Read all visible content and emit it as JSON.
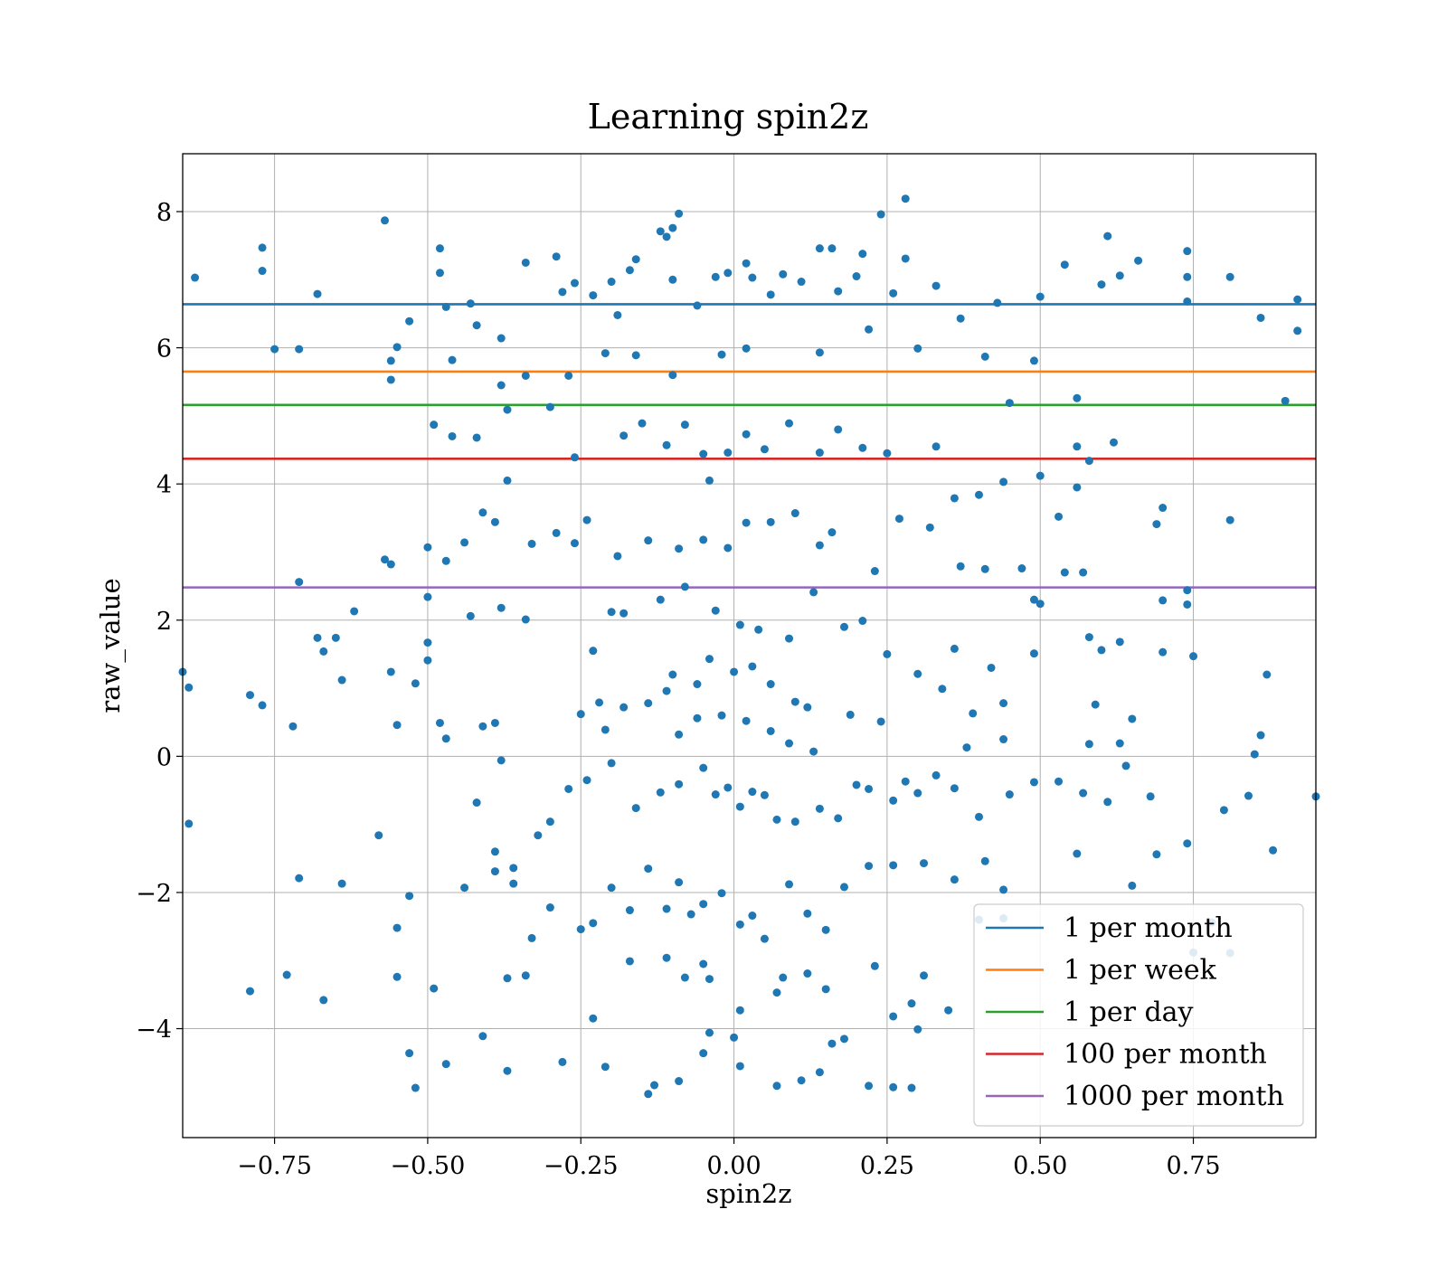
{
  "chart_data": {
    "type": "scatter",
    "title": "Learning spin2z",
    "xlabel": "spin2z",
    "ylabel": "raw_value",
    "xlim": [
      -0.9,
      0.95
    ],
    "ylim": [
      -5.6,
      8.85
    ],
    "grid": true,
    "legend_position": "lower right",
    "x_ticks": [
      -0.75,
      -0.5,
      -0.25,
      0.0,
      0.25,
      0.5,
      0.75
    ],
    "x_tick_labels": [
      "−0.75",
      "−0.50",
      "−0.25",
      "0.00",
      "0.25",
      "0.50",
      "0.75"
    ],
    "y_ticks": [
      -4,
      -2,
      0,
      2,
      4,
      6,
      8
    ],
    "y_tick_labels": [
      "−4",
      "−2",
      "0",
      "2",
      "4",
      "6",
      "8"
    ],
    "scatter_color": "#1f77b4",
    "hlines": [
      {
        "name": "1 per month",
        "y": 6.64,
        "color": "#1f77b4"
      },
      {
        "name": "1 per week",
        "y": 5.65,
        "color": "#ff7f0e"
      },
      {
        "name": "1 per day",
        "y": 5.16,
        "color": "#2ca02c"
      },
      {
        "name": "100 per month",
        "y": 4.37,
        "color": "#d62728"
      },
      {
        "name": "1000 per month",
        "y": 2.48,
        "color": "#9467bd"
      }
    ],
    "points": [
      [
        -0.88,
        7.03
      ],
      [
        -0.77,
        7.47
      ],
      [
        -0.77,
        7.13
      ],
      [
        -0.75,
        5.98
      ],
      [
        -0.68,
        6.79
      ],
      [
        -0.71,
        5.98
      ],
      [
        -0.57,
        7.87
      ],
      [
        -0.48,
        7.46
      ],
      [
        -0.48,
        7.1
      ],
      [
        -0.47,
        6.6
      ],
      [
        -0.43,
        6.65
      ],
      [
        -0.42,
        6.33
      ],
      [
        -0.53,
        6.39
      ],
      [
        -0.55,
        6.01
      ],
      [
        -0.56,
        5.81
      ],
      [
        -0.56,
        5.53
      ],
      [
        -0.46,
        5.82
      ],
      [
        -0.38,
        6.14
      ],
      [
        -0.38,
        5.45
      ],
      [
        -0.37,
        5.09
      ],
      [
        -0.34,
        5.59
      ],
      [
        -0.34,
        7.25
      ],
      [
        -0.29,
        7.34
      ],
      [
        -0.28,
        6.82
      ],
      [
        -0.26,
        6.95
      ],
      [
        -0.23,
        6.77
      ],
      [
        -0.2,
        6.97
      ],
      [
        -0.19,
        6.48
      ],
      [
        -0.17,
        7.14
      ],
      [
        -0.16,
        7.3
      ],
      [
        -0.12,
        7.71
      ],
      [
        -0.11,
        7.63
      ],
      [
        -0.09,
        7.97
      ],
      [
        -0.1,
        7.76
      ],
      [
        -0.1,
        7.0
      ],
      [
        -0.06,
        6.62
      ],
      [
        -0.03,
        7.04
      ],
      [
        -0.01,
        7.1
      ],
      [
        0.02,
        7.24
      ],
      [
        0.03,
        7.03
      ],
      [
        0.06,
        6.78
      ],
      [
        0.08,
        7.08
      ],
      [
        0.11,
        6.97
      ],
      [
        0.14,
        7.46
      ],
      [
        0.16,
        7.46
      ],
      [
        0.17,
        6.83
      ],
      [
        0.2,
        7.05
      ],
      [
        0.21,
        7.38
      ],
      [
        0.24,
        7.96
      ],
      [
        0.28,
        8.19
      ],
      [
        0.28,
        7.31
      ],
      [
        0.26,
        6.8
      ],
      [
        0.33,
        6.91
      ],
      [
        0.37,
        6.43
      ],
      [
        0.43,
        6.66
      ],
      [
        0.5,
        6.75
      ],
      [
        0.54,
        7.22
      ],
      [
        0.61,
        7.64
      ],
      [
        0.6,
        6.93
      ],
      [
        0.63,
        7.06
      ],
      [
        0.66,
        7.28
      ],
      [
        0.74,
        7.42
      ],
      [
        0.74,
        7.04
      ],
      [
        0.74,
        6.68
      ],
      [
        0.81,
        7.04
      ],
      [
        0.86,
        6.44
      ],
      [
        0.92,
        6.71
      ],
      [
        0.92,
        6.25
      ],
      [
        0.9,
        5.22
      ],
      [
        0.56,
        5.26
      ],
      [
        0.45,
        5.19
      ],
      [
        0.49,
        5.81
      ],
      [
        0.41,
        5.87
      ],
      [
        0.3,
        5.99
      ],
      [
        0.22,
        6.27
      ],
      [
        0.14,
        5.93
      ],
      [
        0.02,
        5.99
      ],
      [
        -0.02,
        5.9
      ],
      [
        -0.1,
        5.6
      ],
      [
        -0.16,
        5.89
      ],
      [
        -0.21,
        5.92
      ],
      [
        -0.27,
        5.59
      ],
      [
        -0.3,
        5.13
      ],
      [
        -0.49,
        4.87
      ],
      [
        -0.46,
        4.7
      ],
      [
        -0.42,
        4.68
      ],
      [
        -0.37,
        4.05
      ],
      [
        -0.26,
        4.39
      ],
      [
        -0.18,
        4.71
      ],
      [
        -0.15,
        4.89
      ],
      [
        -0.11,
        4.57
      ],
      [
        -0.08,
        4.87
      ],
      [
        -0.05,
        4.44
      ],
      [
        -0.04,
        4.05
      ],
      [
        -0.01,
        4.46
      ],
      [
        0.02,
        4.73
      ],
      [
        0.05,
        4.51
      ],
      [
        0.09,
        4.89
      ],
      [
        0.14,
        4.46
      ],
      [
        0.17,
        4.8
      ],
      [
        0.21,
        4.53
      ],
      [
        0.25,
        4.45
      ],
      [
        0.33,
        4.55
      ],
      [
        0.36,
        3.79
      ],
      [
        0.4,
        3.84
      ],
      [
        0.44,
        4.03
      ],
      [
        0.5,
        4.12
      ],
      [
        0.56,
        4.55
      ],
      [
        0.58,
        4.34
      ],
      [
        0.62,
        4.61
      ],
      [
        0.7,
        3.65
      ],
      [
        0.69,
        3.41
      ],
      [
        0.81,
        3.47
      ],
      [
        0.56,
        3.95
      ],
      [
        0.53,
        3.52
      ],
      [
        0.54,
        2.7
      ],
      [
        0.57,
        2.7
      ],
      [
        0.47,
        2.76
      ],
      [
        0.41,
        2.75
      ],
      [
        0.37,
        2.79
      ],
      [
        0.32,
        3.36
      ],
      [
        0.27,
        3.49
      ],
      [
        0.23,
        2.72
      ],
      [
        0.16,
        3.29
      ],
      [
        0.14,
        3.1
      ],
      [
        0.1,
        3.57
      ],
      [
        0.06,
        3.44
      ],
      [
        0.02,
        3.43
      ],
      [
        -0.01,
        3.06
      ],
      [
        -0.05,
        3.18
      ],
      [
        -0.09,
        3.05
      ],
      [
        -0.14,
        3.17
      ],
      [
        -0.19,
        2.94
      ],
      [
        -0.24,
        3.47
      ],
      [
        -0.26,
        3.13
      ],
      [
        -0.29,
        3.28
      ],
      [
        -0.33,
        3.12
      ],
      [
        -0.39,
        3.44
      ],
      [
        -0.41,
        3.58
      ],
      [
        -0.44,
        3.14
      ],
      [
        -0.47,
        2.87
      ],
      [
        -0.5,
        3.07
      ],
      [
        -0.56,
        2.82
      ],
      [
        -0.57,
        2.89
      ],
      [
        -0.71,
        2.56
      ],
      [
        -0.5,
        2.34
      ],
      [
        -0.43,
        2.06
      ],
      [
        -0.38,
        2.18
      ],
      [
        -0.34,
        2.01
      ],
      [
        -0.23,
        1.55
      ],
      [
        -0.2,
        2.12
      ],
      [
        -0.18,
        2.1
      ],
      [
        -0.12,
        2.3
      ],
      [
        -0.08,
        2.49
      ],
      [
        -0.03,
        2.14
      ],
      [
        0.01,
        1.93
      ],
      [
        0.04,
        1.86
      ],
      [
        0.09,
        1.73
      ],
      [
        0.13,
        2.41
      ],
      [
        0.18,
        1.9
      ],
      [
        0.21,
        1.99
      ],
      [
        0.25,
        1.5
      ],
      [
        0.3,
        1.21
      ],
      [
        0.36,
        1.58
      ],
      [
        0.42,
        1.3
      ],
      [
        0.49,
        1.51
      ],
      [
        0.49,
        2.3
      ],
      [
        0.5,
        2.24
      ],
      [
        0.58,
        1.75
      ],
      [
        0.6,
        1.56
      ],
      [
        0.63,
        1.68
      ],
      [
        0.7,
        2.29
      ],
      [
        0.7,
        1.53
      ],
      [
        0.75,
        1.47
      ],
      [
        0.74,
        2.44
      ],
      [
        0.74,
        2.23
      ],
      [
        0.87,
        1.2
      ],
      [
        0.85,
        0.03
      ],
      [
        0.86,
        0.31
      ],
      [
        0.95,
        -0.59
      ],
      [
        -0.9,
        1.24
      ],
      [
        -0.89,
        1.01
      ],
      [
        -0.89,
        -0.99
      ],
      [
        -0.79,
        0.9
      ],
      [
        -0.77,
        0.75
      ],
      [
        -0.72,
        0.44
      ],
      [
        -0.68,
        1.74
      ],
      [
        -0.65,
        1.74
      ],
      [
        -0.62,
        2.13
      ],
      [
        -0.64,
        1.12
      ],
      [
        -0.67,
        1.54
      ],
      [
        -0.56,
        1.24
      ],
      [
        -0.52,
        1.07
      ],
      [
        -0.5,
        1.41
      ],
      [
        -0.5,
        1.67
      ],
      [
        -0.55,
        0.46
      ],
      [
        -0.48,
        0.49
      ],
      [
        -0.47,
        0.26
      ],
      [
        -0.41,
        0.44
      ],
      [
        -0.39,
        0.49
      ],
      [
        -0.38,
        -0.06
      ],
      [
        -0.42,
        -0.68
      ],
      [
        -0.39,
        -1.4
      ],
      [
        -0.36,
        -1.64
      ],
      [
        -0.32,
        -1.16
      ],
      [
        -0.3,
        -0.96
      ],
      [
        -0.27,
        -0.48
      ],
      [
        -0.24,
        -0.35
      ],
      [
        -0.2,
        -0.1
      ],
      [
        -0.16,
        -0.76
      ],
      [
        -0.12,
        -0.53
      ],
      [
        -0.09,
        -0.41
      ],
      [
        -0.05,
        -0.17
      ],
      [
        -0.03,
        -0.56
      ],
      [
        -0.01,
        -0.46
      ],
      [
        0.01,
        -0.74
      ],
      [
        0.03,
        -0.52
      ],
      [
        0.05,
        -0.57
      ],
      [
        0.07,
        -0.93
      ],
      [
        0.1,
        -0.96
      ],
      [
        0.14,
        -0.77
      ],
      [
        0.17,
        -0.91
      ],
      [
        0.2,
        -0.42
      ],
      [
        0.22,
        -0.48
      ],
      [
        0.26,
        -0.65
      ],
      [
        0.28,
        -0.37
      ],
      [
        0.3,
        -0.54
      ],
      [
        0.33,
        -0.28
      ],
      [
        0.36,
        -0.47
      ],
      [
        0.4,
        -0.89
      ],
      [
        0.45,
        -0.56
      ],
      [
        0.49,
        -0.38
      ],
      [
        0.53,
        -0.37
      ],
      [
        0.57,
        -0.54
      ],
      [
        0.61,
        -0.67
      ],
      [
        0.64,
        -0.14
      ],
      [
        0.68,
        -0.59
      ],
      [
        0.8,
        -0.79
      ],
      [
        0.84,
        -0.58
      ],
      [
        0.88,
        -1.38
      ],
      [
        0.74,
        -1.28
      ],
      [
        0.69,
        -1.44
      ],
      [
        0.65,
        -1.9
      ],
      [
        0.56,
        -1.43
      ],
      [
        0.44,
        -1.96
      ],
      [
        0.41,
        -1.54
      ],
      [
        0.36,
        -1.81
      ],
      [
        0.31,
        -1.57
      ],
      [
        0.26,
        -1.6
      ],
      [
        0.22,
        -1.61
      ],
      [
        0.18,
        -1.92
      ],
      [
        0.15,
        -2.55
      ],
      [
        0.12,
        -2.31
      ],
      [
        0.09,
        -1.88
      ],
      [
        0.05,
        -2.68
      ],
      [
        0.03,
        -2.34
      ],
      [
        0.01,
        -2.47
      ],
      [
        -0.02,
        -2.01
      ],
      [
        -0.05,
        -2.17
      ],
      [
        -0.07,
        -2.32
      ],
      [
        -0.09,
        -1.85
      ],
      [
        -0.11,
        -2.24
      ],
      [
        -0.14,
        -1.65
      ],
      [
        -0.17,
        -2.26
      ],
      [
        -0.2,
        -1.93
      ],
      [
        -0.23,
        -2.45
      ],
      [
        -0.25,
        -2.54
      ],
      [
        -0.3,
        -2.22
      ],
      [
        -0.33,
        -2.67
      ],
      [
        -0.36,
        -1.87
      ],
      [
        -0.39,
        -1.69
      ],
      [
        -0.44,
        -1.93
      ],
      [
        -0.53,
        -2.05
      ],
      [
        -0.55,
        -2.52
      ],
      [
        -0.55,
        -3.24
      ],
      [
        -0.71,
        -1.79
      ],
      [
        -0.64,
        -1.87
      ],
      [
        -0.58,
        -1.16
      ],
      [
        -0.79,
        -3.45
      ],
      [
        -0.73,
        -3.21
      ],
      [
        -0.67,
        -3.58
      ],
      [
        -0.49,
        -3.41
      ],
      [
        -0.37,
        -3.26
      ],
      [
        -0.34,
        -3.22
      ],
      [
        -0.23,
        -3.85
      ],
      [
        -0.17,
        -3.01
      ],
      [
        -0.11,
        -2.96
      ],
      [
        -0.08,
        -3.25
      ],
      [
        -0.05,
        -3.05
      ],
      [
        -0.04,
        -3.27
      ],
      [
        0.01,
        -3.73
      ],
      [
        0.07,
        -3.47
      ],
      [
        0.08,
        -3.25
      ],
      [
        0.12,
        -3.19
      ],
      [
        0.15,
        -3.42
      ],
      [
        0.23,
        -3.08
      ],
      [
        0.26,
        -3.82
      ],
      [
        0.29,
        -3.63
      ],
      [
        0.31,
        -3.22
      ],
      [
        0.35,
        -3.73
      ],
      [
        -0.53,
        -4.36
      ],
      [
        -0.52,
        -4.87
      ],
      [
        -0.47,
        -4.52
      ],
      [
        -0.41,
        -4.11
      ],
      [
        -0.37,
        -4.62
      ],
      [
        -0.28,
        -4.49
      ],
      [
        -0.21,
        -4.56
      ],
      [
        -0.14,
        -4.96
      ],
      [
        -0.13,
        -4.83
      ],
      [
        -0.09,
        -4.77
      ],
      [
        -0.05,
        -4.36
      ],
      [
        -0.04,
        -4.06
      ],
      [
        0.0,
        -4.13
      ],
      [
        0.01,
        -4.55
      ],
      [
        0.07,
        -4.84
      ],
      [
        0.11,
        -4.76
      ],
      [
        0.14,
        -4.64
      ],
      [
        0.16,
        -4.22
      ],
      [
        0.18,
        -4.15
      ],
      [
        0.22,
        -4.84
      ],
      [
        0.26,
        -4.86
      ],
      [
        0.29,
        -4.87
      ],
      [
        0.3,
        -4.01
      ],
      [
        0.44,
        -2.38
      ],
      [
        0.4,
        -2.4
      ],
      [
        0.78,
        -2.44
      ],
      [
        0.81,
        -2.89
      ],
      [
        0.75,
        -2.88
      ],
      [
        -0.1,
        1.2
      ],
      [
        -0.06,
        1.06
      ],
      [
        -0.04,
        1.43
      ],
      [
        0.0,
        1.24
      ],
      [
        0.03,
        1.32
      ],
      [
        0.06,
        1.06
      ],
      [
        0.1,
        0.8
      ],
      [
        0.12,
        0.72
      ],
      [
        -0.11,
        0.96
      ],
      [
        -0.14,
        0.78
      ],
      [
        -0.18,
        0.72
      ],
      [
        -0.22,
        0.79
      ],
      [
        -0.25,
        0.62
      ],
      [
        -0.21,
        0.39
      ],
      [
        -0.09,
        0.32
      ],
      [
        -0.06,
        0.56
      ],
      [
        -0.02,
        0.6
      ],
      [
        0.02,
        0.52
      ],
      [
        0.06,
        0.37
      ],
      [
        0.09,
        0.19
      ],
      [
        0.13,
        0.07
      ],
      [
        0.19,
        0.61
      ],
      [
        0.24,
        0.51
      ],
      [
        0.34,
        0.99
      ],
      [
        0.39,
        0.63
      ],
      [
        0.44,
        0.78
      ],
      [
        0.44,
        0.25
      ],
      [
        0.38,
        0.13
      ],
      [
        0.59,
        0.76
      ],
      [
        0.63,
        0.19
      ],
      [
        0.58,
        0.18
      ],
      [
        0.65,
        0.55
      ]
    ]
  }
}
